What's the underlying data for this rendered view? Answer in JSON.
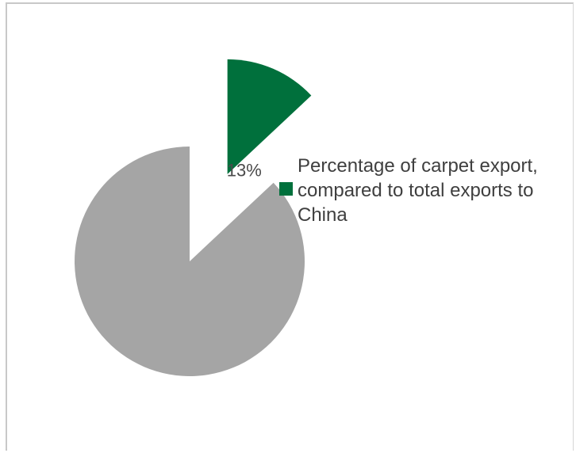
{
  "colors": {
    "highlight": "#00703c",
    "rest": "#a5a5a5",
    "text": "#3f3f3f",
    "frame": "#c8c8c8"
  },
  "chart_data": {
    "type": "pie",
    "slices": [
      {
        "label": "Percentage of carpet export, compared to total exports to China",
        "value": 13,
        "color": "#00703c",
        "exploded": true
      },
      {
        "label": "",
        "value": 87,
        "color": "#a5a5a5",
        "exploded": false
      }
    ],
    "data_labels": [
      "13%"
    ],
    "legend": {
      "placement": "right",
      "entries": [
        "Percentage of carpet export, compared to total exports to China"
      ]
    }
  }
}
